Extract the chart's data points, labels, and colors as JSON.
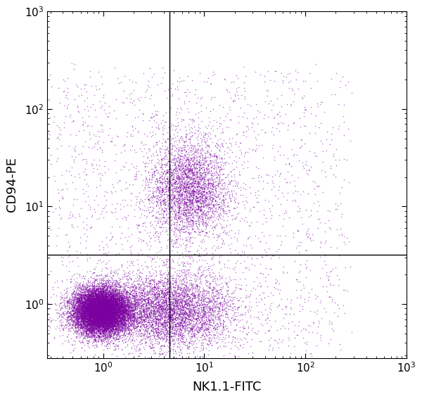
{
  "xlabel": "NK1.1-FITC",
  "ylabel": "CD94-PE",
  "xmin": 0.28,
  "xmax": 1000,
  "ymin": 0.28,
  "ymax": 1000,
  "quadrant_x": 4.5,
  "quadrant_y": 3.2,
  "dot_color": "#7B00A0",
  "background_color": "#ffffff",
  "n_total": 25000,
  "seed": 123,
  "xlabel_fontsize": 13,
  "ylabel_fontsize": 13,
  "tick_fontsize": 11
}
